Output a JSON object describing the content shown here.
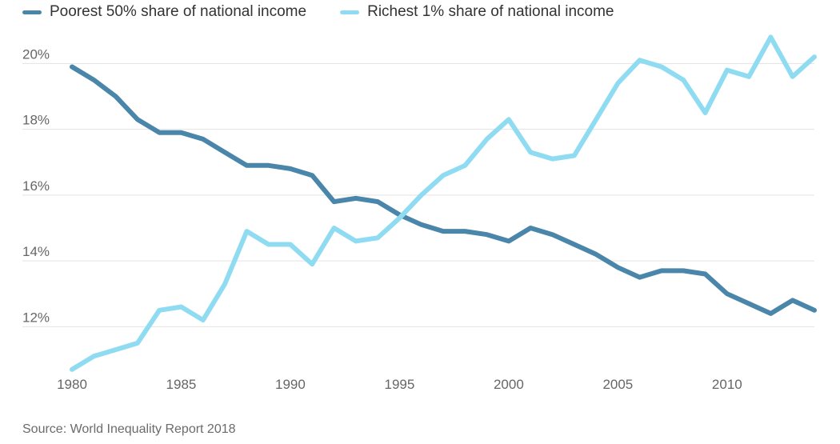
{
  "chart_data": {
    "type": "line",
    "x": [
      1980,
      1981,
      1982,
      1983,
      1984,
      1985,
      1986,
      1987,
      1988,
      1989,
      1990,
      1991,
      1992,
      1993,
      1994,
      1995,
      1996,
      1997,
      1998,
      1999,
      2000,
      2001,
      2002,
      2003,
      2004,
      2005,
      2006,
      2007,
      2008,
      2009,
      2010,
      2011,
      2012,
      2013,
      2014
    ],
    "series": [
      {
        "name": "Poorest 50% share of national income",
        "color": "#4a86aa",
        "values": [
          19.9,
          19.5,
          19.0,
          18.3,
          17.9,
          17.9,
          17.7,
          17.3,
          16.9,
          16.9,
          16.8,
          16.6,
          15.8,
          15.9,
          15.8,
          15.4,
          15.1,
          14.9,
          14.9,
          14.8,
          14.6,
          15.0,
          14.8,
          14.5,
          14.2,
          13.8,
          13.5,
          13.7,
          13.7,
          13.6,
          13.0,
          12.7,
          12.4,
          12.8,
          12.5
        ]
      },
      {
        "name": "Richest 1% share of national income",
        "color": "#8fdcf2",
        "values": [
          10.7,
          11.1,
          11.3,
          11.5,
          12.5,
          12.6,
          12.2,
          13.3,
          14.9,
          14.5,
          14.5,
          13.9,
          15.0,
          14.6,
          14.7,
          15.3,
          16.0,
          16.6,
          16.9,
          17.7,
          18.3,
          17.3,
          17.1,
          17.2,
          18.3,
          19.4,
          20.1,
          19.9,
          19.5,
          18.5,
          19.8,
          19.6,
          20.8,
          19.6,
          20.2
        ]
      }
    ],
    "x_ticks": [
      "1980",
      "1985",
      "1990",
      "1995",
      "2000",
      "2005",
      "2010"
    ],
    "y_ticks": [
      "12%",
      "14%",
      "16%",
      "18%",
      "20%"
    ],
    "xlim": [
      1980,
      2014
    ],
    "ylim": [
      10.5,
      21.2
    ],
    "grid": true,
    "legend_position": "top-left",
    "source": "Source: World Inequality Report 2018"
  }
}
